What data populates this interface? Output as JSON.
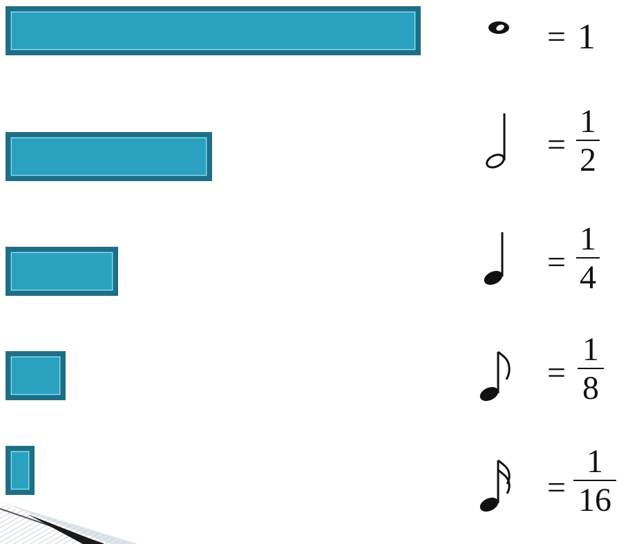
{
  "colors": {
    "bar_border": "#1f6e86",
    "bar_fill": "#2aa1bf",
    "bar_highlight": "#a5dbe8"
  },
  "rows": [
    {
      "note": "whole-note-icon",
      "value": 1,
      "equals": "=",
      "whole": "1"
    },
    {
      "note": "half-note-icon",
      "value": 0.5,
      "equals": "=",
      "numerator": "1",
      "denominator": "2"
    },
    {
      "note": "quarter-note-icon",
      "value": 0.25,
      "equals": "=",
      "numerator": "1",
      "denominator": "4"
    },
    {
      "note": "eighth-note-icon",
      "value": 0.125,
      "equals": "=",
      "numerator": "1",
      "denominator": "8"
    },
    {
      "note": "sixteenth-note-icon",
      "value": 0.0625,
      "equals": "=",
      "numerator": "1",
      "denominator": "16"
    }
  ]
}
